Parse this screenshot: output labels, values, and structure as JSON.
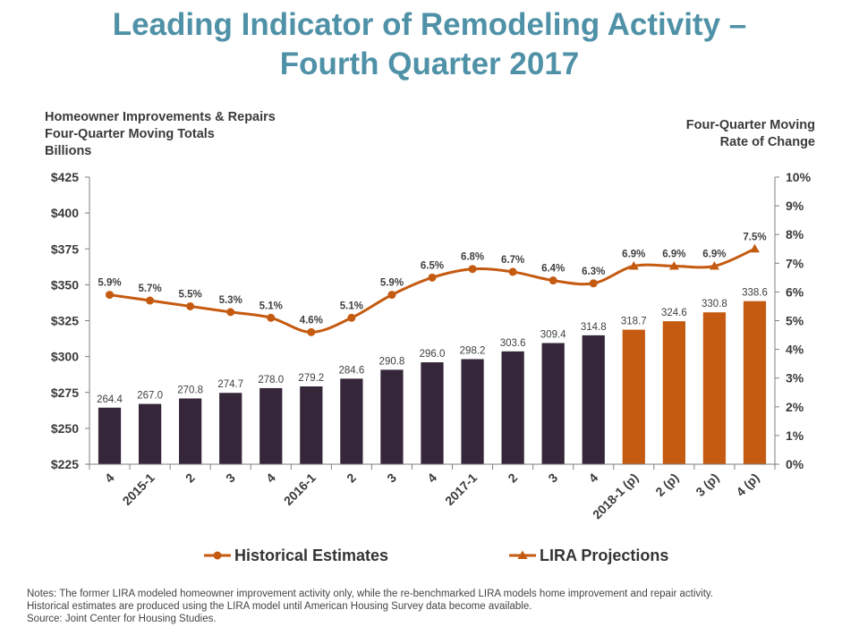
{
  "title_line1": "Leading Indicator of Remodeling Activity –",
  "title_line2": "Fourth Quarter 2017",
  "left_axis_label": [
    "Homeowner Improvements & Repairs",
    "Four-Quarter Moving Totals",
    "Billions"
  ],
  "right_axis_label": [
    "Four-Quarter Moving",
    "Rate of Change"
  ],
  "notes": {
    "line1": "Notes: The former LIRA modeled homeowner improvement activity only, while the re-benchmarked LIRA models home improvement and repair activity.",
    "line2": "Historical estimates are produced using the LIRA model until American Housing Survey data become available.",
    "line3": "Source: Joint Center for Housing Studies."
  },
  "colors": {
    "historical_bar": "#35263a",
    "projection_bar": "#c55a11",
    "line": "#c55a11",
    "title": "#4f91a7"
  },
  "chart_data": {
    "type": "bar",
    "categories": [
      "4",
      "2015-1",
      "2",
      "3",
      "4",
      "2016-1",
      "2",
      "3",
      "4",
      "2017-1",
      "2",
      "3",
      "4",
      "2018-1 (p)",
      "2 (p)",
      "3 (p)",
      "4 (p)"
    ],
    "bar_values": [
      264.4,
      267.0,
      270.8,
      274.7,
      278.0,
      279.2,
      284.6,
      290.8,
      296.0,
      298.2,
      303.6,
      309.4,
      314.8,
      318.7,
      324.6,
      330.8,
      338.6
    ],
    "bar_labels": [
      "264.4",
      "267.0",
      "270.8",
      "274.7",
      "278.0",
      "279.2",
      "284.6",
      "290.8",
      "296.0",
      "298.2",
      "303.6",
      "309.4",
      "314.8",
      "318.7",
      "324.6",
      "330.8",
      "338.6"
    ],
    "projection_start_index": 13,
    "rate_values": [
      5.9,
      5.7,
      5.5,
      5.3,
      5.1,
      4.6,
      5.1,
      5.9,
      6.5,
      6.8,
      6.7,
      6.4,
      6.3,
      6.9,
      6.9,
      6.9,
      7.5
    ],
    "rate_labels": [
      "5.9%",
      "5.7%",
      "5.5%",
      "5.3%",
      "5.1%",
      "4.6%",
      "5.1%",
      "5.9%",
      "6.5%",
      "6.8%",
      "6.7%",
      "6.4%",
      "6.3%",
      "6.9%",
      "6.9%",
      "6.9%",
      "7.5%"
    ],
    "left_axis": {
      "min": 225,
      "max": 425,
      "step": 25,
      "ticks": [
        "$225",
        "$250",
        "$275",
        "$300",
        "$325",
        "$350",
        "$375",
        "$400",
        "$425"
      ]
    },
    "right_axis": {
      "min": 0,
      "max": 10,
      "step": 1,
      "ticks": [
        "0%",
        "1%",
        "2%",
        "3%",
        "4%",
        "5%",
        "6%",
        "7%",
        "8%",
        "9%",
        "10%"
      ]
    },
    "series": [
      {
        "name": "Historical Estimates",
        "marker": "circle"
      },
      {
        "name": "LIRA Projections",
        "marker": "triangle"
      }
    ],
    "legend_position": "bottom",
    "grid": false
  }
}
